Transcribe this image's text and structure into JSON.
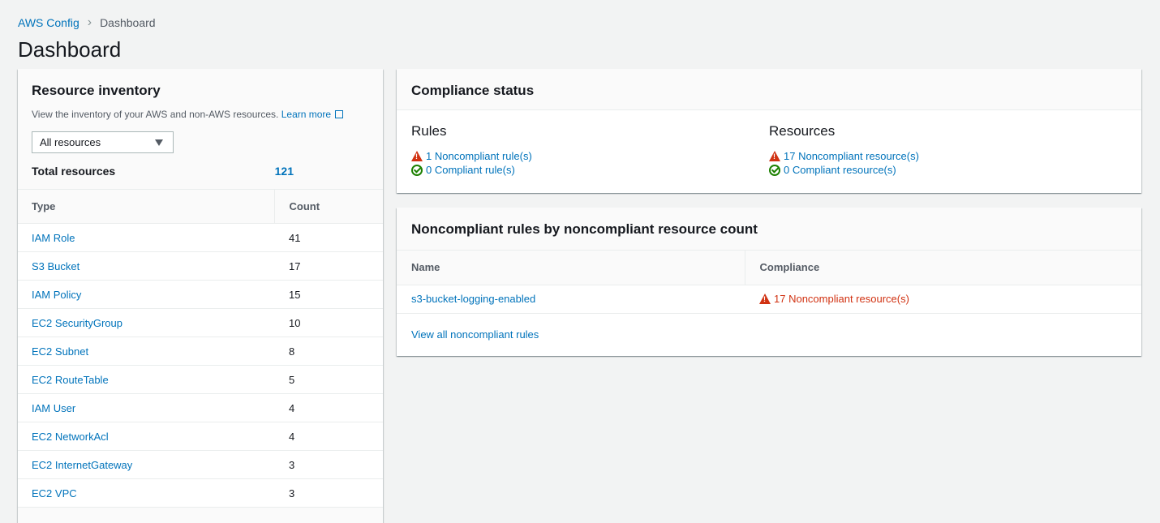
{
  "breadcrumb": [
    "AWS Config",
    "Dashboard"
  ],
  "page_title": "Dashboard",
  "inventory": {
    "title": "Resource inventory",
    "description": "View the inventory of your AWS and non-AWS resources.",
    "learn_more": "Learn more",
    "filter_value": "All resources",
    "total_label": "Total resources",
    "total_value": "121",
    "columns": [
      "Type",
      "Count"
    ],
    "rows": [
      {
        "type": "IAM Role",
        "count": "41"
      },
      {
        "type": "S3 Bucket",
        "count": "17"
      },
      {
        "type": "IAM Policy",
        "count": "15"
      },
      {
        "type": "EC2 SecurityGroup",
        "count": "10"
      },
      {
        "type": "EC2 Subnet",
        "count": "8"
      },
      {
        "type": "EC2 RouteTable",
        "count": "5"
      },
      {
        "type": "IAM User",
        "count": "4"
      },
      {
        "type": "EC2 NetworkAcl",
        "count": "4"
      },
      {
        "type": "EC2 InternetGateway",
        "count": "3"
      },
      {
        "type": "EC2 VPC",
        "count": "3"
      }
    ]
  },
  "compliance": {
    "title": "Compliance status",
    "rules": {
      "title": "Rules",
      "noncompliant": "1 Noncompliant rule(s)",
      "compliant": "0 Compliant rule(s)"
    },
    "resources": {
      "title": "Resources",
      "noncompliant": "17 Noncompliant resource(s)",
      "compliant": "0 Compliant resource(s)"
    }
  },
  "noncompliant_rules": {
    "title": "Noncompliant rules by noncompliant resource count",
    "columns": [
      "Name",
      "Compliance"
    ],
    "rows": [
      {
        "name": "s3-bucket-logging-enabled",
        "compliance": "17 Noncompliant resource(s)"
      }
    ],
    "view_all": "View all noncompliant rules"
  },
  "colors": {
    "link": "#0073bb",
    "error": "#d13212",
    "success": "#1d8102",
    "background": "#f2f3f3"
  }
}
